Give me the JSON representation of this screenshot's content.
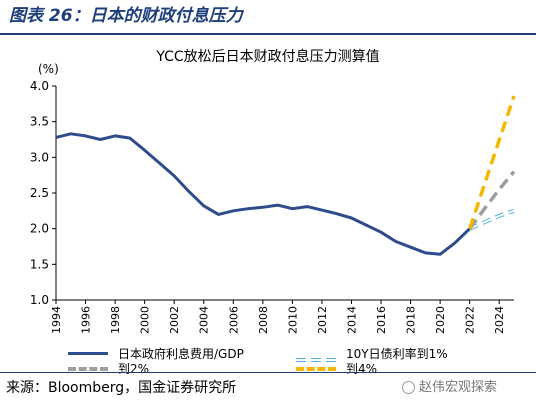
{
  "figure_title": "图表 26：日本的财政付息压力",
  "source": "来源：Bloomberg，国金证券研究所",
  "watermark": "赵伟宏观探索",
  "colors": {
    "navy": "#2e4b8c",
    "light_blue": "#4fb3d9",
    "gray": "#9e9e9e",
    "gold": "#f5b800"
  },
  "chart_data": {
    "type": "line",
    "title": "YCC放松后日本财政付息压力测算值",
    "ylabel": "(%)",
    "xlabel": "",
    "ylim": [
      1.0,
      4.0
    ],
    "yticks": [
      "1.0",
      "1.5",
      "2.0",
      "2.5",
      "3.0",
      "3.5",
      "4.0"
    ],
    "xlim": [
      1994,
      2025
    ],
    "xticks": [
      "1994",
      "1996",
      "1998",
      "2000",
      "2002",
      "2004",
      "2006",
      "2008",
      "2010",
      "2012",
      "2014",
      "2016",
      "2018",
      "2020",
      "2022",
      "2024"
    ],
    "grid": false,
    "legend_position": "bottom",
    "series": [
      {
        "name": "日本政府利息费用/GDP",
        "style": "solid",
        "color": "#2e4b8c",
        "x": [
          1994,
          1995,
          1996,
          1997,
          1998,
          1999,
          2000,
          2001,
          2002,
          2003,
          2004,
          2005,
          2006,
          2007,
          2008,
          2009,
          2010,
          2011,
          2012,
          2013,
          2014,
          2015,
          2016,
          2017,
          2018,
          2019,
          2020,
          2021,
          2022
        ],
        "values": [
          3.28,
          3.33,
          3.3,
          3.25,
          3.3,
          3.27,
          3.1,
          2.92,
          2.74,
          2.52,
          2.32,
          2.2,
          2.25,
          2.28,
          2.3,
          2.33,
          2.28,
          2.31,
          2.26,
          2.21,
          2.15,
          2.05,
          1.95,
          1.82,
          1.74,
          1.66,
          1.64,
          1.8,
          2.0
        ]
      },
      {
        "name": "10Y日债利率到1%",
        "style": "dash-outline",
        "color": "#4fb3d9",
        "x": [
          2022,
          2023,
          2024,
          2025
        ],
        "values": [
          2.0,
          2.09,
          2.18,
          2.25
        ]
      },
      {
        "name": "到2%",
        "style": "dash",
        "color": "#9e9e9e",
        "x": [
          2022,
          2023,
          2024,
          2025
        ],
        "values": [
          2.0,
          2.28,
          2.55,
          2.8
        ]
      },
      {
        "name": "到4%",
        "style": "dash",
        "color": "#f5b800",
        "x": [
          2022,
          2023,
          2024,
          2025
        ],
        "values": [
          2.0,
          2.62,
          3.24,
          3.86
        ]
      }
    ]
  }
}
